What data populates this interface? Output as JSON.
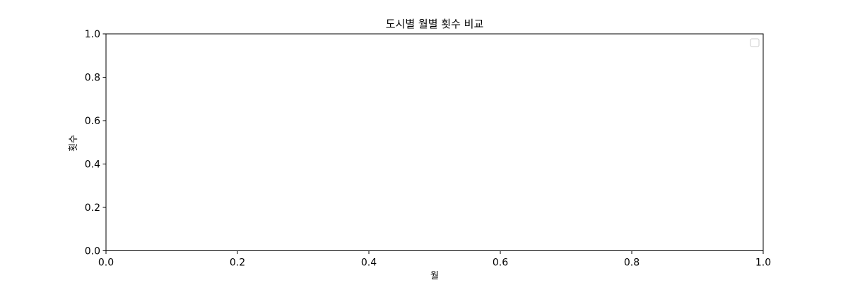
{
  "chart_data": {
    "type": "line",
    "title": "도시별 월별 횟수 비교",
    "xlabel": "월",
    "ylabel": "횟수",
    "xlim": [
      0.0,
      1.0
    ],
    "ylim": [
      0.0,
      1.0
    ],
    "x_ticks": [
      "0.0",
      "0.2",
      "0.4",
      "0.6",
      "0.8",
      "1.0"
    ],
    "y_ticks": [
      "0.0",
      "0.2",
      "0.4",
      "0.6",
      "0.8",
      "1.0"
    ],
    "series": [],
    "grid": false,
    "legend": {
      "placement": "top-right",
      "entries": []
    }
  }
}
